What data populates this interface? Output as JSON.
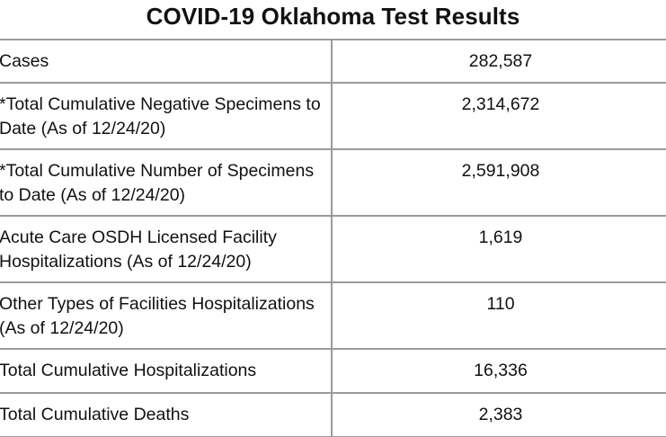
{
  "title": "COVID-19 Oklahoma Test Results",
  "rows": [
    {
      "label": "Cases",
      "value": "282,587"
    },
    {
      "label": "*Total Cumulative Negative Specimens to Date (As of 12/24/20)",
      "value": "2,314,672"
    },
    {
      "label": "*Total Cumulative Number of Specimens to Date (As of 12/24/20)",
      "value": "2,591,908"
    },
    {
      "label": "Acute Care OSDH Licensed Facility Hospitalizations (As of 12/24/20)",
      "value": "1,619"
    },
    {
      "label": "Other Types of Facilities Hospitalizations (As of 12/24/20)",
      "value": "110"
    },
    {
      "label": "Total Cumulative Hospitalizations",
      "value": "16,336"
    },
    {
      "label": "Total Cumulative Deaths",
      "value": "2,383"
    }
  ]
}
